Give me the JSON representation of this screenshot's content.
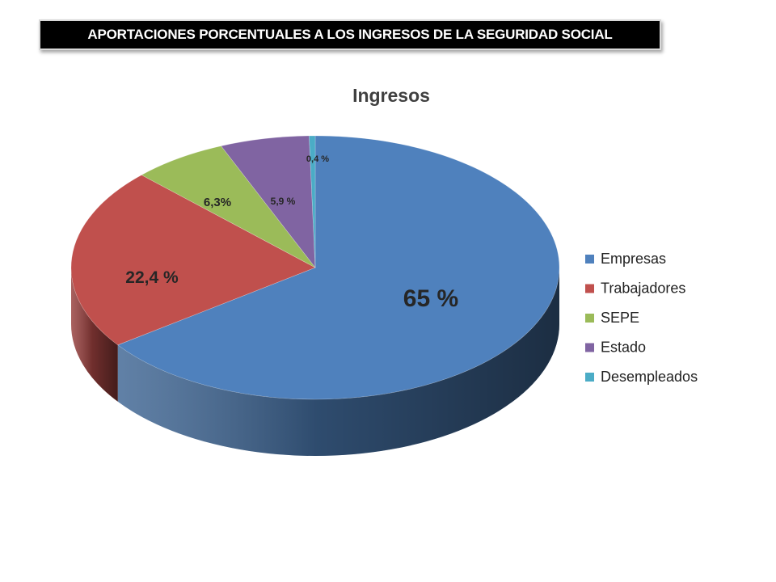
{
  "header": {
    "banner_text": "APORTACIONES PORCENTUALES A LOS INGRESOS DE LA SEGURIDAD SOCIAL"
  },
  "chart_data": {
    "type": "pie",
    "title": "Ingresos",
    "three_d": true,
    "legend_position": "right",
    "slices": [
      {
        "name": "Empresas",
        "value": 65,
        "label": "65 %",
        "color": "#4f81bd"
      },
      {
        "name": "Trabajadores",
        "value": 22.4,
        "label": "22,4 %",
        "color": "#c0504d"
      },
      {
        "name": "SEPE",
        "value": 6.3,
        "label": "6,3%",
        "color": "#9bbb59"
      },
      {
        "name": "Estado",
        "value": 5.9,
        "label": "5,9 %",
        "color": "#8064a2"
      },
      {
        "name": "Desempleados",
        "value": 0.4,
        "label": "0,4 %",
        "color": "#4bacc6"
      }
    ]
  }
}
